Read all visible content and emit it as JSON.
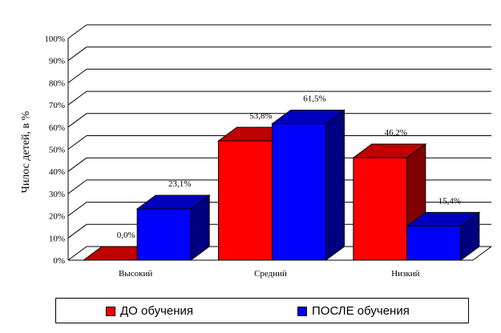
{
  "chart_data": {
    "type": "bar",
    "ylabel": "Чилос детей, в %",
    "ylim": [
      0,
      100
    ],
    "yticks": [
      "0%",
      "10%",
      "20%",
      "30%",
      "40%",
      "50%",
      "60%",
      "70%",
      "80%",
      "90%",
      "100%"
    ],
    "categories": [
      "Высокий",
      "Средний",
      "Низкий"
    ],
    "series": [
      {
        "name": "ДО обучения",
        "color": "#ff0000",
        "values": [
          0.0,
          53.8,
          46.2
        ],
        "labels": [
          "0,0%",
          "53,8%",
          "46,2%"
        ]
      },
      {
        "name": "ПОСЛЕ обучения",
        "color": "#0000ff",
        "values": [
          23.1,
          61.5,
          15.4
        ],
        "labels": [
          "23,1%",
          "61,5%",
          "15,4%"
        ]
      }
    ],
    "grid": true,
    "legend_position": "bottom",
    "style": "3d-clustered-bar"
  }
}
